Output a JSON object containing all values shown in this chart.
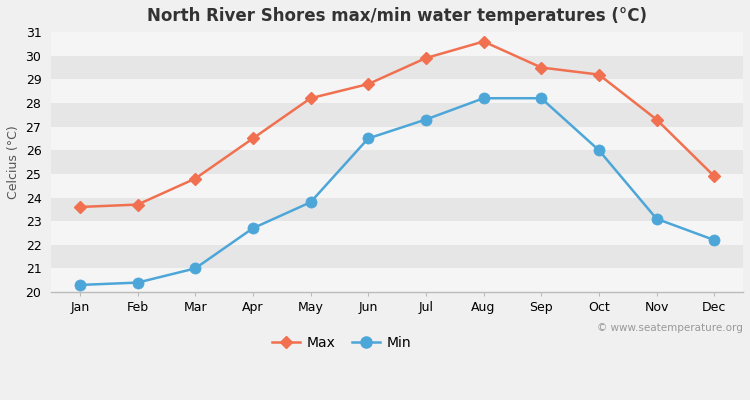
{
  "title": "North River Shores max/min water temperatures (°C)",
  "ylabel": "Celcius (°C)",
  "months": [
    "Jan",
    "Feb",
    "Mar",
    "Apr",
    "May",
    "Jun",
    "Jul",
    "Aug",
    "Sep",
    "Oct",
    "Nov",
    "Dec"
  ],
  "max_temps": [
    23.6,
    23.7,
    24.8,
    26.5,
    28.2,
    28.8,
    29.9,
    30.6,
    29.5,
    29.2,
    27.3,
    24.9
  ],
  "min_temps": [
    20.3,
    20.4,
    21.0,
    22.7,
    23.8,
    26.5,
    27.3,
    28.2,
    28.2,
    26.0,
    23.1,
    22.2
  ],
  "max_color": "#f07050",
  "min_color": "#4da6d8",
  "bg_color": "#f0f0f0",
  "band_light": "#f5f5f5",
  "band_dark": "#e6e6e6",
  "ylim": [
    20,
    31
  ],
  "yticks": [
    20,
    21,
    22,
    23,
    24,
    25,
    26,
    27,
    28,
    29,
    30,
    31
  ],
  "watermark": "© www.seatemperature.org",
  "legend_max": "Max",
  "legend_min": "Min",
  "max_marker": "D",
  "min_marker": "o",
  "max_marker_size": 6,
  "min_marker_size": 8,
  "line_width": 1.8,
  "title_fontsize": 12,
  "label_fontsize": 9,
  "tick_fontsize": 9,
  "watermark_fontsize": 7.5
}
